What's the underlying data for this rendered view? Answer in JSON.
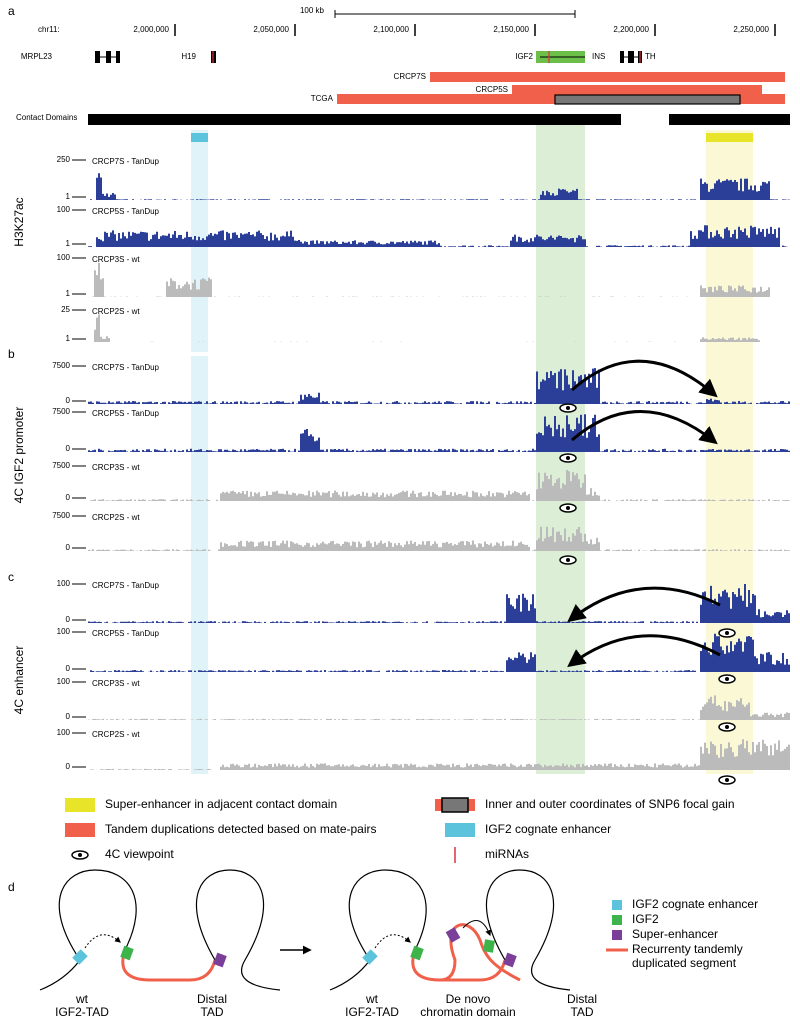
{
  "panels": {
    "a": "a",
    "b": "b",
    "c": "c",
    "d": "d"
  },
  "axis": {
    "chrom": "chr11:",
    "scale_bar": "100 kb",
    "ticks": [
      {
        "value": 2000000,
        "label": "2,000,000"
      },
      {
        "value": 2050000,
        "label": "2,050,000"
      },
      {
        "value": 2100000,
        "label": "2,100,000"
      },
      {
        "value": 2150000,
        "label": "2,150,000"
      },
      {
        "value": 2200000,
        "label": "2,200,000"
      },
      {
        "value": 2250000,
        "label": "2,250,000"
      }
    ]
  },
  "genes": [
    "MRPL23",
    "H19",
    "IGF2",
    "INS",
    "TH"
  ],
  "duplications": [
    "CRCP7S",
    "CRCP5S",
    "TCGA"
  ],
  "contact_domains": "Contact Domains",
  "sections": [
    {
      "label": "H3K27ac",
      "tracks": [
        {
          "name": "CRCP7S - TanDup",
          "max": 250,
          "min": 1
        },
        {
          "name": "CRCP5S - TanDup",
          "max": 100,
          "min": 1
        },
        {
          "name": "CRCP3S - wt",
          "max": 100,
          "min": 1
        },
        {
          "name": "CRCP2S - wt",
          "max": 25,
          "min": 1
        }
      ]
    },
    {
      "label": "4C IGF2 promoter",
      "tracks": [
        {
          "name": "CRCP7S - TanDup",
          "max": 7500,
          "min": 0
        },
        {
          "name": "CRCP5S - TanDup",
          "max": 7500,
          "min": 0
        },
        {
          "name": "CRCP3S - wt",
          "max": 7500,
          "min": 0
        },
        {
          "name": "CRCP2S - wt",
          "max": 7500,
          "min": 0
        }
      ]
    },
    {
      "label": "4C enhancer",
      "tracks": [
        {
          "name": "CRCP7S - TanDup",
          "max": 100,
          "min": 0
        },
        {
          "name": "CRCP5S - TanDup",
          "max": 100,
          "min": 0
        },
        {
          "name": "CRCP3S - wt",
          "max": 100,
          "min": 0
        },
        {
          "name": "CRCP2S - wt",
          "max": 100,
          "min": 0
        }
      ]
    }
  ],
  "legend": [
    "Super-enhancer in adjacent contact domain",
    "Tandem duplications detected based on mate-pairs",
    "4C viewpoint",
    "Inner and outer coordinates of SNP6 focal gain",
    "IGF2 cognate enhancer",
    "miRNAs"
  ],
  "model": {
    "labels": [
      [
        "wt",
        "IGF2-TAD"
      ],
      [
        "Distal",
        "TAD"
      ],
      [
        "wt",
        "IGF2-TAD"
      ],
      [
        "De novo",
        "chromatin domain"
      ],
      [
        "Distal",
        "TAD"
      ]
    ],
    "legend": [
      [
        "IGF2 cognate enhancer"
      ],
      [
        "IGF2"
      ],
      [
        "Super-enhancer"
      ],
      [
        "Recurrenty tandemly",
        "duplicated segment"
      ]
    ]
  }
}
